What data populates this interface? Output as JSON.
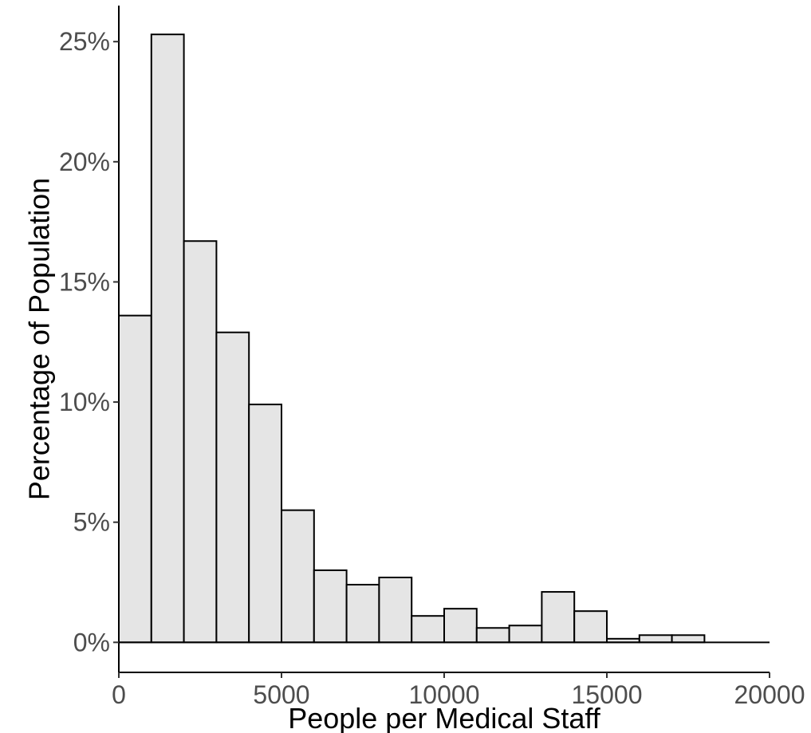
{
  "chart_data": {
    "type": "bar",
    "histogram": true,
    "title": "",
    "xlabel": "People per Medical Staff",
    "ylabel": "Percentage of Population",
    "xlim": [
      0,
      20000
    ],
    "ylim": [
      -1.25,
      26.5
    ],
    "x_ticks": [
      0,
      5000,
      10000,
      15000,
      20000
    ],
    "x_tick_labels": [
      "0",
      "5000",
      "10000",
      "15000",
      "20000"
    ],
    "y_ticks": [
      0,
      5,
      10,
      15,
      20,
      25
    ],
    "y_tick_labels": [
      "0%",
      "5%",
      "10%",
      "15%",
      "20%",
      "25%"
    ],
    "bin_width": 1000,
    "bins": [
      {
        "start": 0,
        "end": 1000,
        "value": 13.6
      },
      {
        "start": 1000,
        "end": 2000,
        "value": 25.3
      },
      {
        "start": 2000,
        "end": 3000,
        "value": 16.7
      },
      {
        "start": 3000,
        "end": 4000,
        "value": 12.9
      },
      {
        "start": 4000,
        "end": 5000,
        "value": 9.9
      },
      {
        "start": 5000,
        "end": 6000,
        "value": 5.5
      },
      {
        "start": 6000,
        "end": 7000,
        "value": 3.0
      },
      {
        "start": 7000,
        "end": 8000,
        "value": 2.4
      },
      {
        "start": 8000,
        "end": 9000,
        "value": 2.7
      },
      {
        "start": 9000,
        "end": 10000,
        "value": 1.1
      },
      {
        "start": 10000,
        "end": 11000,
        "value": 1.4
      },
      {
        "start": 11000,
        "end": 12000,
        "value": 0.6
      },
      {
        "start": 12000,
        "end": 13000,
        "value": 0.7
      },
      {
        "start": 13000,
        "end": 14000,
        "value": 2.1
      },
      {
        "start": 14000,
        "end": 15000,
        "value": 1.3
      },
      {
        "start": 15000,
        "end": 16000,
        "value": 0.15
      },
      {
        "start": 16000,
        "end": 17000,
        "value": 0.3
      },
      {
        "start": 17000,
        "end": 18000,
        "value": 0.3
      }
    ],
    "baseline_to": 20000,
    "bar_fill": "#e5e5e5",
    "bar_stroke": "#000000",
    "grid": false,
    "legend": "none"
  }
}
